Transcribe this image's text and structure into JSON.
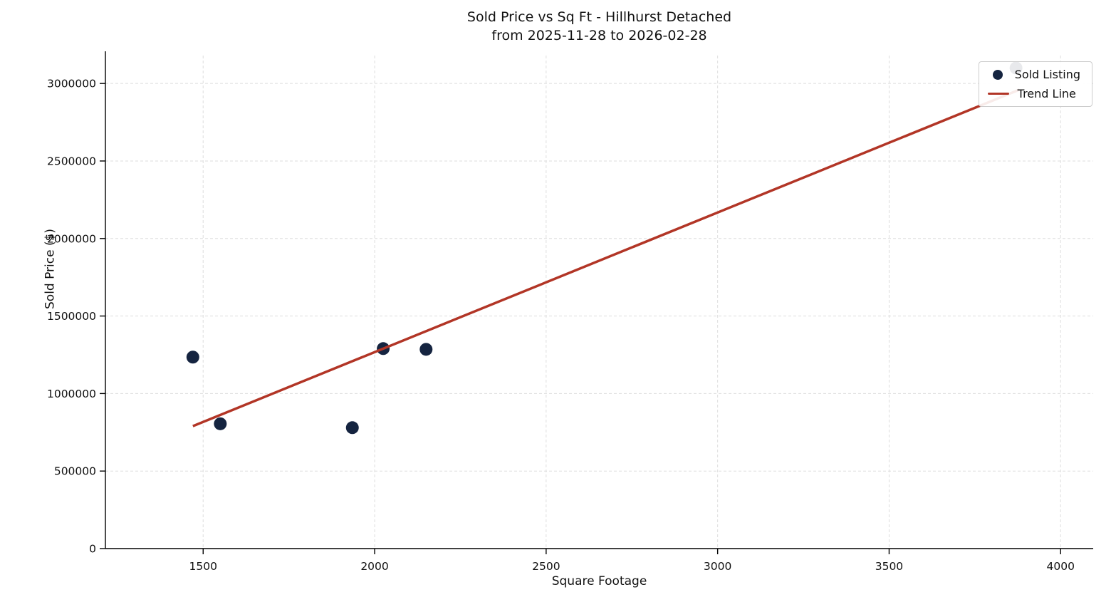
{
  "chart_data": {
    "type": "scatter",
    "title": "Sold Price vs Sq Ft - Hillhurst Detached\nfrom 2025-11-28 to 2026-02-28",
    "xlabel": "Square Footage",
    "ylabel": "Sold Price ($)",
    "xlim": [
      1215,
      4095
    ],
    "ylim": [
      0,
      3180000
    ],
    "x_ticks": [
      1500,
      2000,
      2500,
      3000,
      3500,
      4000
    ],
    "y_ticks": [
      0,
      500000,
      1000000,
      1500000,
      2000000,
      2500000,
      3000000
    ],
    "grid": true,
    "legend_position": "upper right",
    "series": [
      {
        "name": "Sold Listing",
        "type": "scatter",
        "color": "#152440",
        "points": [
          {
            "x": 1470,
            "y": 1235000
          },
          {
            "x": 1550,
            "y": 805000
          },
          {
            "x": 1935,
            "y": 780000
          },
          {
            "x": 2025,
            "y": 1290000
          },
          {
            "x": 2150,
            "y": 1285000
          },
          {
            "x": 3870,
            "y": 3100000
          }
        ]
      },
      {
        "name": "Trend Line",
        "type": "line",
        "color": "#b23526",
        "points": [
          {
            "x": 1470,
            "y": 790000
          },
          {
            "x": 3880,
            "y": 2960000
          }
        ]
      }
    ]
  },
  "legend": {
    "items": [
      {
        "label": "Sold Listing",
        "marker": "dot",
        "color": "#152440"
      },
      {
        "label": "Trend Line",
        "marker": "line",
        "color": "#b23526"
      }
    ]
  }
}
